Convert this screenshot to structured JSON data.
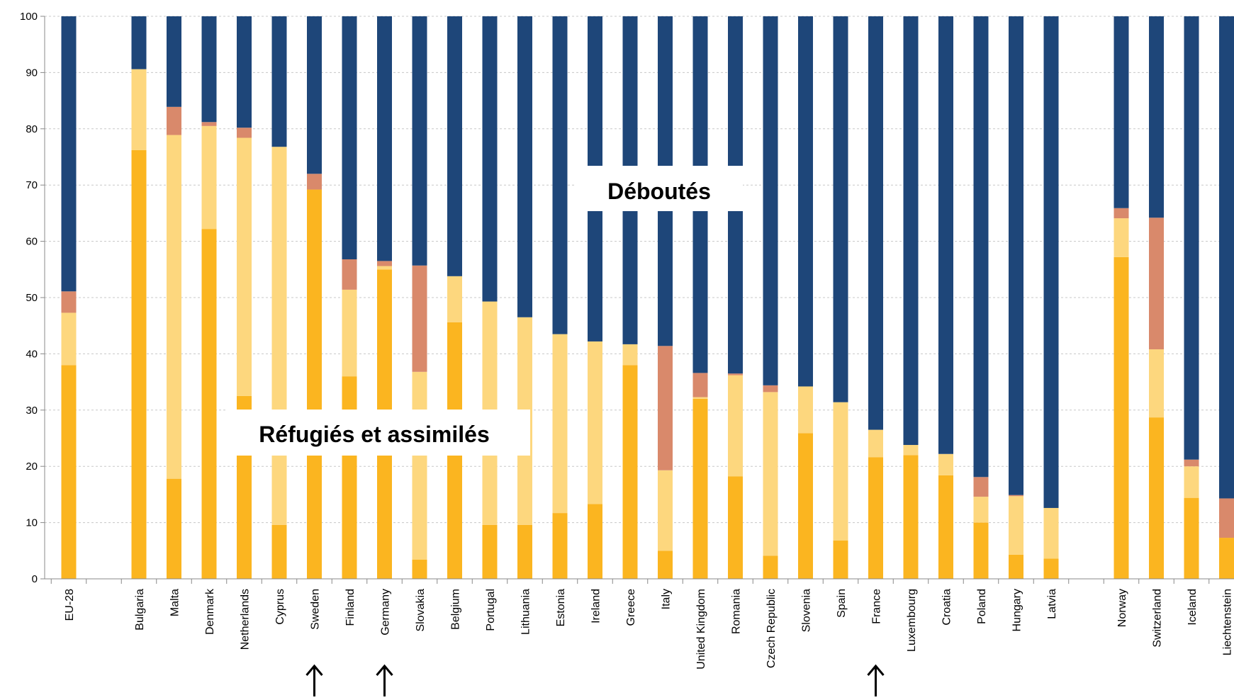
{
  "chart_data": {
    "type": "bar",
    "stacked": true,
    "title": "",
    "xlabel": "",
    "ylabel": "",
    "ylim": [
      0,
      100
    ],
    "yticks": [
      0,
      10,
      20,
      30,
      40,
      50,
      60,
      70,
      80,
      90,
      100
    ],
    "grid": true,
    "categories": [
      "EU-28",
      "Bulgaria",
      "Malta",
      "Denmark",
      "Netherlands",
      "Cyprus",
      "Sweden",
      "Finland",
      "Germany",
      "Slovakia",
      "Belgium",
      "Portugal",
      "Lithuania",
      "Estonia",
      "Ireland",
      "Greece",
      "Italy",
      "United Kingdom",
      "Romania",
      "Czech Republic",
      "Slovenia",
      "Spain",
      "France",
      "Luxembourg",
      "Croatia",
      "Poland",
      "Hungary",
      "Latvia",
      "Norway",
      "Switzerland",
      "Iceland",
      "Liechtenstein"
    ],
    "groups_start": [
      "EU-28",
      "Bulgaria",
      "Norway"
    ],
    "series": [
      {
        "key": "s1",
        "color": "#FBB520",
        "values": [
          38,
          76.2,
          17.8,
          62.2,
          32.5,
          9.6,
          69.2,
          36,
          55,
          3.4,
          45.6,
          9.6,
          9.6,
          11.7,
          13.3,
          38,
          5,
          32,
          18.2,
          4.1,
          25.9,
          6.8,
          21.6,
          22,
          18.4,
          10,
          4.3,
          3.6,
          57.2,
          28.7,
          14.4,
          7.3
        ]
      },
      {
        "key": "s2",
        "color": "#FDD77E",
        "values": [
          9.3,
          14.4,
          61.1,
          18.3,
          45.9,
          67.2,
          0,
          15.4,
          0.6,
          33.4,
          8.2,
          39.7,
          36.9,
          31.8,
          28.9,
          3.7,
          14.3,
          0.3,
          18,
          29.1,
          8.3,
          24.6,
          4.9,
          1.8,
          3.8,
          4.6,
          10.4,
          9,
          6.9,
          12.1,
          5.6,
          0
        ]
      },
      {
        "key": "s3",
        "color": "#D9896B",
        "values": [
          3.8,
          0,
          5,
          0.7,
          1.8,
          0,
          2.8,
          5.4,
          0.9,
          18.9,
          0,
          0,
          0,
          0,
          0,
          0,
          22.1,
          4.3,
          0.3,
          1.2,
          0,
          0,
          0,
          0,
          0,
          3.5,
          0.2,
          0,
          1.8,
          23.4,
          1.2,
          7
        ]
      },
      {
        "key": "s4",
        "color": "#1E4679",
        "values": [
          48.9,
          9.4,
          16.1,
          18.8,
          19.8,
          23.2,
          28,
          43.2,
          43.5,
          44.3,
          46.2,
          50.7,
          53.5,
          56.5,
          57.8,
          58.3,
          58.6,
          63.4,
          63.5,
          65.6,
          65.8,
          68.6,
          73.5,
          76.2,
          77.8,
          81.9,
          85.1,
          87.4,
          34.1,
          35.8,
          78.8,
          85.7
        ]
      }
    ],
    "annotations": [
      {
        "text": "Déboutés"
      },
      {
        "text": "Réfugiés et assimilés"
      }
    ],
    "arrows_under": [
      "Sweden",
      "Germany",
      "France"
    ]
  }
}
